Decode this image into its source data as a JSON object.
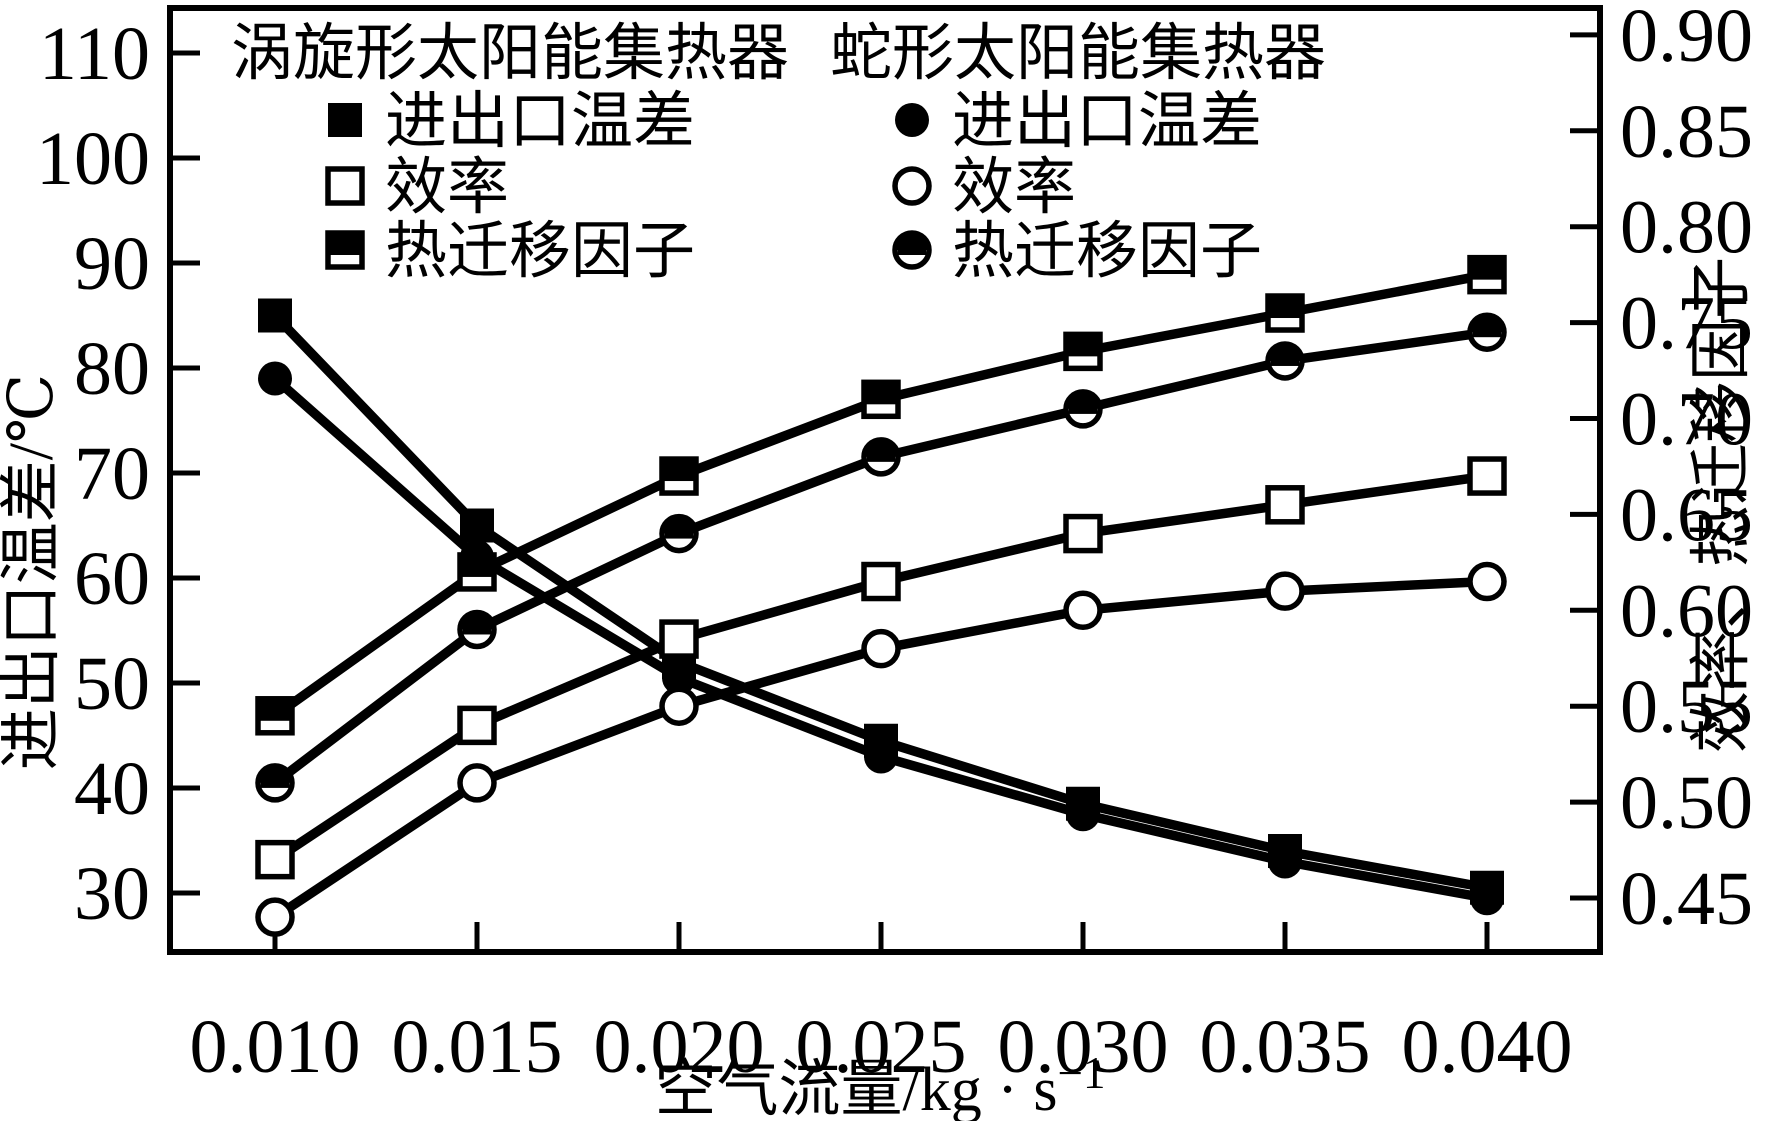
{
  "chart_data": {
    "type": "line",
    "title": "",
    "xlabel": {
      "prefix": "空气流量/kg · s",
      "sup": "−1",
      "full_text": "空气流量/kg·s⁻¹"
    },
    "ylabel_left": "进出口温差/℃",
    "ylabel_right": "效率、热迁移因子",
    "ink_color": "#000000",
    "background_color": "#ffffff",
    "grid": false,
    "x_axis": {
      "min": 0.0074,
      "max": 0.0428,
      "ticks": [
        0.01,
        0.015,
        0.02,
        0.025,
        0.03,
        0.035,
        0.04
      ],
      "tick_labels": [
        "0.010",
        "0.015",
        "0.020",
        "0.025",
        "0.030",
        "0.035",
        "0.040"
      ]
    },
    "left_axis": {
      "min": 24.6,
      "max": 114.3,
      "ticks": [
        110,
        100,
        90,
        80,
        70,
        60,
        50,
        40,
        30
      ],
      "tick_labels": [
        "110",
        "100",
        "90",
        "80",
        "70",
        "60",
        "50",
        "40",
        "30"
      ]
    },
    "right_axis": {
      "min": 0.423,
      "max": 0.914,
      "ticks": [
        0.9,
        0.85,
        0.8,
        0.75,
        0.7,
        0.65,
        0.6,
        0.55,
        0.5,
        0.45
      ],
      "tick_labels": [
        "0.90",
        "0.85",
        "0.80",
        "0.75",
        "0.70",
        "0.65",
        "0.60",
        "0.55",
        "0.50",
        "0.45"
      ]
    },
    "x": [
      0.01,
      0.015,
      0.02,
      0.025,
      0.03,
      0.035,
      0.04
    ],
    "series": [
      {
        "name": "涡旋形太阳能集热器-进出口温差",
        "axis": "left",
        "marker": "square-filled",
        "values": [
          85,
          65,
          52,
          44.5,
          38.5,
          34,
          30.5
        ]
      },
      {
        "name": "涡旋形太阳能集热器-效率",
        "axis": "right",
        "marker": "square-open",
        "values": [
          0.47,
          0.54,
          0.585,
          0.615,
          0.64,
          0.655,
          0.67
        ]
      },
      {
        "name": "涡旋形太阳能集热器-热迁移因子",
        "axis": "right",
        "marker": "square-half",
        "values": [
          0.545,
          0.62,
          0.67,
          0.71,
          0.735,
          0.755,
          0.775
        ]
      },
      {
        "name": "蛇形太阳能集热器-进出口温差",
        "axis": "left",
        "marker": "circle-filled",
        "values": [
          79,
          62,
          50.5,
          43,
          37.5,
          33,
          29.5
        ]
      },
      {
        "name": "蛇形太阳能集热器-效率",
        "axis": "right",
        "marker": "circle-open",
        "values": [
          0.44,
          0.51,
          0.55,
          0.58,
          0.6,
          0.61,
          0.615
        ]
      },
      {
        "name": "蛇形太阳能集热器-热迁移因子",
        "axis": "right",
        "marker": "circle-half",
        "values": [
          0.51,
          0.59,
          0.64,
          0.68,
          0.705,
          0.73,
          0.745
        ]
      }
    ],
    "legend": {
      "position": "top-inside",
      "groups": [
        {
          "title": "涡旋形太阳能集热器",
          "entries": [
            {
              "marker": "square-filled",
              "label": "进出口温差"
            },
            {
              "marker": "square-open",
              "label": "效率"
            },
            {
              "marker": "square-half",
              "label": "热迁移因子"
            }
          ]
        },
        {
          "title": "蛇形太阳能集热器",
          "entries": [
            {
              "marker": "circle-filled",
              "label": "进出口温差"
            },
            {
              "marker": "circle-open",
              "label": "效率"
            },
            {
              "marker": "circle-half",
              "label": "热迁移因子"
            }
          ]
        }
      ]
    }
  }
}
